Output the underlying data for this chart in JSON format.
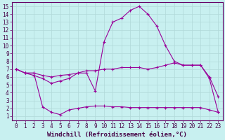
{
  "title": "",
  "xlabel": "Windchill (Refroidissement éolien,°C)",
  "background_color": "#c8f0f0",
  "grid_color": "#b0d8d8",
  "line_color": "#990099",
  "xticks": [
    0,
    1,
    2,
    3,
    4,
    5,
    6,
    7,
    8,
    9,
    10,
    11,
    12,
    13,
    14,
    15,
    16,
    17,
    18,
    19,
    20,
    21,
    22,
    23
  ],
  "yticks": [
    1,
    2,
    3,
    4,
    5,
    6,
    7,
    8,
    9,
    10,
    11,
    12,
    13,
    14,
    15
  ],
  "series1_x": [
    0,
    1,
    2,
    3,
    4,
    5,
    6,
    7,
    8,
    9,
    10,
    11,
    12,
    13,
    14,
    15,
    16,
    17,
    18,
    19,
    20,
    21,
    22,
    23
  ],
  "series1_y": [
    7.0,
    6.5,
    6.2,
    5.8,
    5.2,
    5.5,
    5.8,
    6.5,
    6.5,
    4.2,
    10.5,
    13.0,
    13.5,
    14.5,
    15.0,
    14.0,
    12.5,
    10.0,
    8.0,
    7.5,
    7.5,
    7.5,
    6.0,
    3.5
  ],
  "series2_x": [
    0,
    1,
    2,
    3,
    4,
    5,
    6,
    7,
    8,
    9,
    10,
    11,
    12,
    13,
    14,
    15,
    16,
    17,
    18,
    19,
    20,
    21,
    22,
    23
  ],
  "series2_y": [
    7.0,
    6.5,
    6.5,
    6.2,
    6.0,
    6.2,
    6.3,
    6.5,
    6.8,
    6.8,
    7.0,
    7.0,
    7.2,
    7.2,
    7.2,
    7.0,
    7.2,
    7.5,
    7.8,
    7.5,
    7.5,
    7.5,
    5.8,
    1.5
  ],
  "series3_x": [
    0,
    1,
    2,
    3,
    4,
    5,
    6,
    7,
    8,
    9,
    10,
    11,
    12,
    13,
    14,
    15,
    16,
    17,
    18,
    19,
    20,
    21,
    22,
    23
  ],
  "series3_y": [
    7.0,
    6.5,
    6.5,
    2.2,
    1.5,
    1.2,
    1.8,
    2.0,
    2.2,
    2.3,
    2.3,
    2.2,
    2.2,
    2.1,
    2.1,
    2.1,
    2.1,
    2.1,
    2.1,
    2.1,
    2.1,
    2.1,
    1.8,
    1.5
  ],
  "marker": "+",
  "markersize": 3,
  "linewidth": 0.8,
  "fontsize_label": 6.5,
  "fontsize_tick": 5.5
}
